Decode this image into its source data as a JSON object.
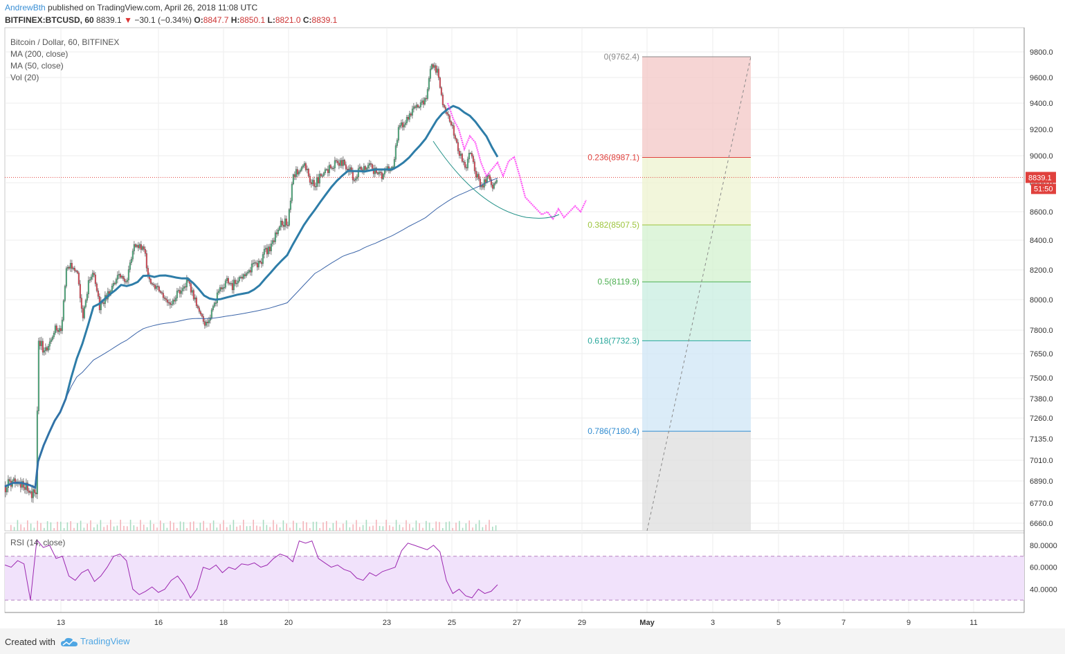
{
  "header": {
    "author": "AndrewBth",
    "published": "published on TradingView.com, April 26, 2018 11:08 UTC",
    "symbol": "BITFINEX:BTCUSD, 60",
    "price": "8839.1",
    "arrow": "▼",
    "change": "−30.1 (−0.34%)",
    "o_label": "O:",
    "o": "8847.7",
    "h_label": "H:",
    "h": "8850.1",
    "l_label": "L:",
    "l": "8821.0",
    "c_label": "C:",
    "c": "8839.1"
  },
  "legend": {
    "title": "Bitcoin / Dollar, 60, BITFINEX",
    "ma200": "MA (200, close)",
    "ma50": "MA (50, close)",
    "vol": "Vol (20)",
    "rsi": "RSI (14, close)"
  },
  "footer": {
    "created_with": "Created with",
    "brand": "TradingView"
  },
  "colors": {
    "up": "#53b987",
    "down": "#eb4d5c",
    "ma50": "#2e7da8",
    "ma200": "#3a64a8",
    "projection": "#ff3cf5",
    "rsi_line": "#9c27b0",
    "rsi_band": "#f1e2fb",
    "price_label": "#e0413d"
  },
  "chart_data": {
    "type": "candlestick",
    "instrument": "BITFINEX:BTCUSD",
    "interval": "60",
    "x_ticks": [
      "13",
      "16",
      "18",
      "20",
      "23",
      "25",
      "27",
      "29",
      "May",
      "3",
      "5",
      "7",
      "9",
      "11"
    ],
    "y_ticks": [
      "9800.0",
      "9600.0",
      "9400.0",
      "9200.0",
      "9000.0",
      "8800.0",
      "8600.0",
      "8400.0",
      "8200.0",
      "8000.0",
      "7800.0",
      "7650.0",
      "7500.0",
      "7380.0",
      "7260.0",
      "7135.0",
      "7010.0",
      "6890.0",
      "6770.0",
      "6660.0"
    ],
    "rsi_ticks": [
      "80.0000",
      "60.0000",
      "40.0000"
    ],
    "last_price_label": "8839.1",
    "countdown_label": "51:50",
    "fibonacci": [
      {
        "label": "0(9762.4)",
        "level": 0,
        "price": 9762.4,
        "color": "#888888"
      },
      {
        "label": "0.236(8987.1)",
        "level": 0.236,
        "price": 8987.1,
        "color": "#e0413d"
      },
      {
        "label": "0.382(8507.5)",
        "level": 0.382,
        "price": 8507.5,
        "color": "#9cc43b"
      },
      {
        "label": "0.5(8119.9)",
        "level": 0.5,
        "price": 8119.9,
        "color": "#4caf50"
      },
      {
        "label": "0.618(7732.3)",
        "level": 0.618,
        "price": 7732.3,
        "color": "#26a69a"
      },
      {
        "label": "0.786(7180.4)",
        "level": 0.786,
        "price": 7180.4,
        "color": "#2f8bd0"
      }
    ],
    "price_path": [
      [
        0,
        6860
      ],
      [
        3,
        6900
      ],
      [
        6,
        6880
      ],
      [
        9,
        6830
      ],
      [
        11,
        6800
      ],
      [
        12,
        7750
      ],
      [
        14,
        7650
      ],
      [
        16,
        7700
      ],
      [
        18,
        7820
      ],
      [
        20,
        7780
      ],
      [
        22,
        8200
      ],
      [
        24,
        8230
      ],
      [
        26,
        8180
      ],
      [
        28,
        7900
      ],
      [
        30,
        8100
      ],
      [
        32,
        8180
      ],
      [
        34,
        7950
      ],
      [
        36,
        8000
      ],
      [
        38,
        8060
      ],
      [
        40,
        8130
      ],
      [
        42,
        8160
      ],
      [
        44,
        8120
      ],
      [
        46,
        8340
      ],
      [
        48,
        8370
      ],
      [
        50,
        8350
      ],
      [
        52,
        8120
      ],
      [
        54,
        8080
      ],
      [
        56,
        8050
      ],
      [
        58,
        8010
      ],
      [
        60,
        7990
      ],
      [
        62,
        8040
      ],
      [
        64,
        8100
      ],
      [
        66,
        8120
      ],
      [
        68,
        8010
      ],
      [
        70,
        7930
      ],
      [
        72,
        7850
      ],
      [
        74,
        7900
      ],
      [
        76,
        8000
      ],
      [
        78,
        8090
      ],
      [
        80,
        8130
      ],
      [
        82,
        8090
      ],
      [
        84,
        8150
      ],
      [
        86,
        8170
      ],
      [
        88,
        8200
      ],
      [
        90,
        8230
      ],
      [
        92,
        8250
      ],
      [
        94,
        8330
      ],
      [
        96,
        8350
      ],
      [
        98,
        8470
      ],
      [
        100,
        8520
      ],
      [
        102,
        8530
      ],
      [
        104,
        8860
      ],
      [
        106,
        8890
      ],
      [
        108,
        8930
      ],
      [
        110,
        8820
      ],
      [
        112,
        8800
      ],
      [
        114,
        8850
      ],
      [
        116,
        8900
      ],
      [
        118,
        8910
      ],
      [
        120,
        8960
      ],
      [
        122,
        8940
      ],
      [
        124,
        8910
      ],
      [
        126,
        8830
      ],
      [
        128,
        8890
      ],
      [
        130,
        8900
      ],
      [
        132,
        8920
      ],
      [
        134,
        8870
      ],
      [
        136,
        8850
      ],
      [
        138,
        8900
      ],
      [
        140,
        8920
      ],
      [
        142,
        9200
      ],
      [
        144,
        9260
      ],
      [
        146,
        9300
      ],
      [
        148,
        9360
      ],
      [
        150,
        9380
      ],
      [
        152,
        9460
      ],
      [
        154,
        9700
      ],
      [
        156,
        9640
      ],
      [
        158,
        9400
      ],
      [
        160,
        9280
      ],
      [
        162,
        9180
      ],
      [
        164,
        9020
      ],
      [
        166,
        8900
      ],
      [
        168,
        9020
      ],
      [
        170,
        8870
      ],
      [
        172,
        8760
      ],
      [
        174,
        8850
      ],
      [
        176,
        8780
      ],
      [
        178,
        8839
      ]
    ],
    "projection_path": [
      [
        160,
        9400
      ],
      [
        162,
        9280
      ],
      [
        164,
        9200
      ],
      [
        166,
        9050
      ],
      [
        168,
        9150
      ],
      [
        170,
        9100
      ],
      [
        172,
        8950
      ],
      [
        174,
        8850
      ],
      [
        176,
        8900
      ],
      [
        178,
        8950
      ],
      [
        180,
        8850
      ],
      [
        182,
        8960
      ],
      [
        184,
        8990
      ],
      [
        186,
        8850
      ],
      [
        188,
        8700
      ],
      [
        190,
        8660
      ],
      [
        192,
        8620
      ],
      [
        194,
        8580
      ],
      [
        196,
        8600
      ],
      [
        198,
        8550
      ],
      [
        200,
        8620
      ],
      [
        202,
        8560
      ],
      [
        204,
        8600
      ],
      [
        206,
        8640
      ],
      [
        208,
        8600
      ],
      [
        210,
        8680
      ]
    ],
    "rsi_values": [
      62,
      60,
      66,
      63,
      30,
      85,
      78,
      80,
      68,
      70,
      52,
      48,
      55,
      58,
      47,
      52,
      60,
      70,
      72,
      66,
      40,
      35,
      38,
      42,
      37,
      40,
      48,
      52,
      44,
      32,
      40,
      60,
      58,
      62,
      55,
      60,
      58,
      63,
      62,
      64,
      60,
      62,
      68,
      72,
      70,
      65,
      84,
      82,
      84,
      68,
      64,
      60,
      62,
      58,
      56,
      50,
      48,
      55,
      52,
      56,
      58,
      60,
      75,
      82,
      80,
      78,
      76,
      80,
      74,
      48,
      36,
      40,
      34,
      32,
      40,
      36,
      38,
      44
    ],
    "rsi_band": [
      30,
      70
    ]
  }
}
